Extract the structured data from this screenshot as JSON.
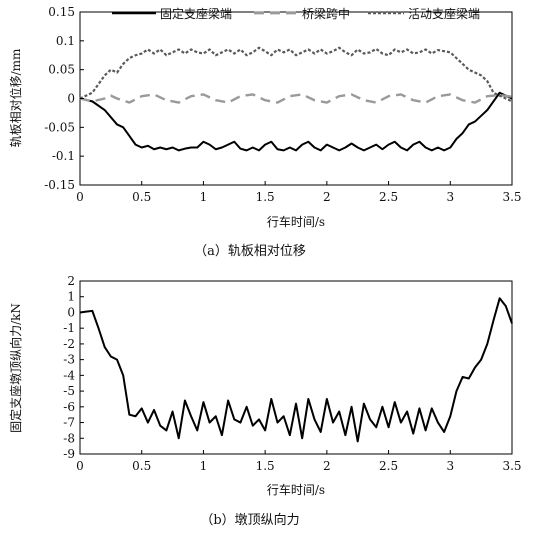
{
  "chart_data": [
    {
      "type": "line",
      "caption": "（a）轨板相对位移",
      "xlabel": "行车时间/s",
      "ylabel": "轨板相对位移/mm",
      "xlim": [
        0,
        3.5
      ],
      "ylim": [
        -0.15,
        0.15
      ],
      "xticks": [
        "0",
        "0.5",
        "1",
        "1.5",
        "2",
        "2.5",
        "3",
        "3.5"
      ],
      "yticks": [
        "0.15",
        "0.1",
        "0.05",
        "0",
        "-0.05",
        "-0.1",
        "-0.15"
      ],
      "legend_position": "top",
      "series": [
        {
          "name": "固定支座梁端",
          "style": "solid",
          "color": "#000000",
          "x": [
            0,
            0.1,
            0.2,
            0.3,
            0.35,
            0.4,
            0.45,
            0.5,
            0.55,
            0.6,
            0.65,
            0.7,
            0.75,
            0.8,
            0.85,
            0.9,
            0.95,
            1.0,
            1.05,
            1.1,
            1.15,
            1.2,
            1.25,
            1.3,
            1.35,
            1.4,
            1.45,
            1.5,
            1.55,
            1.6,
            1.65,
            1.7,
            1.75,
            1.8,
            1.85,
            1.9,
            1.95,
            2.0,
            2.05,
            2.1,
            2.15,
            2.2,
            2.25,
            2.3,
            2.35,
            2.4,
            2.45,
            2.5,
            2.55,
            2.6,
            2.65,
            2.7,
            2.75,
            2.8,
            2.85,
            2.9,
            2.95,
            3.0,
            3.05,
            3.1,
            3.15,
            3.2,
            3.25,
            3.3,
            3.35,
            3.4,
            3.45,
            3.5
          ],
          "y": [
            0,
            -0.005,
            -0.02,
            -0.045,
            -0.05,
            -0.065,
            -0.08,
            -0.085,
            -0.082,
            -0.088,
            -0.085,
            -0.088,
            -0.085,
            -0.09,
            -0.087,
            -0.085,
            -0.085,
            -0.075,
            -0.08,
            -0.088,
            -0.085,
            -0.08,
            -0.075,
            -0.087,
            -0.09,
            -0.085,
            -0.09,
            -0.08,
            -0.075,
            -0.088,
            -0.09,
            -0.085,
            -0.09,
            -0.08,
            -0.075,
            -0.085,
            -0.09,
            -0.08,
            -0.085,
            -0.09,
            -0.085,
            -0.078,
            -0.085,
            -0.09,
            -0.085,
            -0.08,
            -0.088,
            -0.08,
            -0.075,
            -0.085,
            -0.09,
            -0.08,
            -0.075,
            -0.085,
            -0.09,
            -0.085,
            -0.09,
            -0.085,
            -0.07,
            -0.06,
            -0.045,
            -0.04,
            -0.03,
            -0.02,
            -0.005,
            0.01,
            0.005,
            0
          ]
        },
        {
          "name": "桥梁跨中",
          "style": "long-dash",
          "color": "#9a9a9a",
          "x": [
            0,
            0.1,
            0.2,
            0.25,
            0.3,
            0.4,
            0.5,
            0.6,
            0.7,
            0.8,
            0.9,
            1.0,
            1.1,
            1.2,
            1.3,
            1.4,
            1.5,
            1.6,
            1.7,
            1.8,
            1.9,
            2.0,
            2.1,
            2.2,
            2.3,
            2.4,
            2.5,
            2.6,
            2.7,
            2.8,
            2.9,
            3.0,
            3.1,
            3.2,
            3.3,
            3.4,
            3.5
          ],
          "y": [
            0,
            -0.005,
            0.0,
            0.005,
            0.0,
            -0.007,
            0.004,
            0.007,
            -0.003,
            -0.007,
            0.004,
            0.007,
            -0.003,
            -0.007,
            0.004,
            0.007,
            -0.003,
            -0.007,
            0.004,
            0.007,
            -0.003,
            -0.007,
            0.004,
            0.007,
            -0.003,
            -0.007,
            0.004,
            0.007,
            -0.003,
            -0.007,
            0.004,
            0.007,
            -0.003,
            -0.007,
            0.004,
            0.006,
            0.003
          ]
        },
        {
          "name": "活动支座梁端",
          "style": "short-dash",
          "color": "#5a5a5a",
          "x": [
            0,
            0.1,
            0.15,
            0.2,
            0.25,
            0.3,
            0.35,
            0.4,
            0.45,
            0.5,
            0.55,
            0.6,
            0.65,
            0.7,
            0.75,
            0.8,
            0.85,
            0.9,
            0.95,
            1.0,
            1.05,
            1.1,
            1.15,
            1.2,
            1.25,
            1.3,
            1.35,
            1.4,
            1.45,
            1.5,
            1.55,
            1.6,
            1.65,
            1.7,
            1.75,
            1.8,
            1.85,
            1.9,
            1.95,
            2.0,
            2.05,
            2.1,
            2.15,
            2.2,
            2.25,
            2.3,
            2.35,
            2.4,
            2.45,
            2.5,
            2.55,
            2.6,
            2.65,
            2.7,
            2.75,
            2.8,
            2.85,
            2.9,
            2.95,
            3.0,
            3.05,
            3.1,
            3.15,
            3.2,
            3.25,
            3.3,
            3.35,
            3.4,
            3.45,
            3.5
          ],
          "y": [
            0,
            0.01,
            0.025,
            0.04,
            0.05,
            0.045,
            0.06,
            0.07,
            0.075,
            0.078,
            0.085,
            0.078,
            0.085,
            0.075,
            0.08,
            0.085,
            0.078,
            0.085,
            0.08,
            0.078,
            0.085,
            0.075,
            0.08,
            0.085,
            0.078,
            0.085,
            0.075,
            0.08,
            0.088,
            0.082,
            0.075,
            0.085,
            0.08,
            0.085,
            0.075,
            0.08,
            0.085,
            0.078,
            0.085,
            0.078,
            0.082,
            0.088,
            0.08,
            0.075,
            0.085,
            0.078,
            0.08,
            0.086,
            0.078,
            0.075,
            0.085,
            0.08,
            0.085,
            0.078,
            0.08,
            0.085,
            0.078,
            0.084,
            0.082,
            0.08,
            0.07,
            0.06,
            0.05,
            0.045,
            0.04,
            0.03,
            0.01,
            0.005,
            0.0,
            -0.005
          ]
        }
      ]
    },
    {
      "type": "line",
      "caption": "（b）墩顶纵向力",
      "xlabel": "行车时间/s",
      "ylabel": "固定支座墩顶纵向力/kN",
      "xlim": [
        0,
        3.5
      ],
      "ylim": [
        -9,
        2
      ],
      "xticks": [
        "0",
        "0.5",
        "1",
        "1.5",
        "2",
        "2.5",
        "3",
        "3.5"
      ],
      "yticks": [
        "2",
        "1",
        "0",
        "-1",
        "-2",
        "-3",
        "-4",
        "-5",
        "-6",
        "-7",
        "-8",
        "-9"
      ],
      "series": [
        {
          "style": "solid",
          "color": "#000000",
          "x": [
            0,
            0.05,
            0.1,
            0.15,
            0.2,
            0.25,
            0.3,
            0.35,
            0.4,
            0.45,
            0.5,
            0.55,
            0.6,
            0.65,
            0.7,
            0.75,
            0.8,
            0.85,
            0.9,
            0.95,
            1.0,
            1.05,
            1.1,
            1.15,
            1.2,
            1.25,
            1.3,
            1.35,
            1.4,
            1.45,
            1.5,
            1.55,
            1.6,
            1.65,
            1.7,
            1.75,
            1.8,
            1.85,
            1.9,
            1.95,
            2.0,
            2.05,
            2.1,
            2.15,
            2.2,
            2.25,
            2.3,
            2.35,
            2.4,
            2.45,
            2.5,
            2.55,
            2.6,
            2.65,
            2.7,
            2.75,
            2.8,
            2.85,
            2.9,
            2.95,
            3.0,
            3.05,
            3.1,
            3.15,
            3.2,
            3.25,
            3.3,
            3.35,
            3.4,
            3.45,
            3.5
          ],
          "y": [
            0,
            0.05,
            0.1,
            -1.0,
            -2.2,
            -2.8,
            -3.0,
            -4.0,
            -6.5,
            -6.6,
            -6.1,
            -7.0,
            -6.2,
            -7.2,
            -7.5,
            -6.3,
            -8.0,
            -5.6,
            -6.6,
            -7.5,
            -5.7,
            -7.0,
            -6.6,
            -7.8,
            -5.6,
            -6.8,
            -7.0,
            -6.0,
            -7.2,
            -6.8,
            -7.5,
            -5.5,
            -7.0,
            -6.6,
            -7.8,
            -5.8,
            -8.0,
            -5.5,
            -6.8,
            -7.6,
            -5.5,
            -7.0,
            -6.3,
            -7.8,
            -6.0,
            -8.2,
            -5.8,
            -6.8,
            -7.3,
            -6.0,
            -7.3,
            -5.7,
            -7.0,
            -6.3,
            -7.7,
            -6.1,
            -7.5,
            -6.1,
            -7.0,
            -7.6,
            -6.6,
            -5.0,
            -4.1,
            -4.2,
            -3.5,
            -3.0,
            -2.0,
            -0.5,
            0.9,
            0.4,
            -0.7
          ]
        }
      ]
    }
  ]
}
